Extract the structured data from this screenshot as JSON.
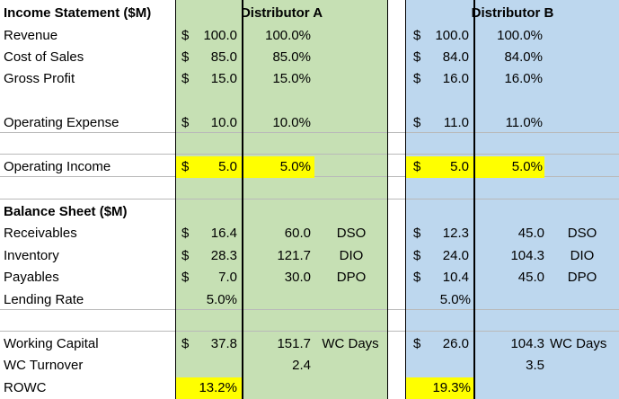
{
  "colors": {
    "green": "#c6e0b4",
    "blue": "#bdd7ee",
    "highlight": "#ffff00"
  },
  "headers": {
    "title": "Income Statement ($M)",
    "dist_a": "Distributor A",
    "dist_b": "Distributor B",
    "balance_title": "Balance Sheet ($M)"
  },
  "labels": {
    "revenue": "Revenue",
    "cost_of_sales": "Cost of Sales",
    "gross_profit": "Gross Profit",
    "operating_expense": "Operating Expense",
    "operating_income": "Operating Income",
    "receivables": "Receivables",
    "inventory": "Inventory",
    "payables": "Payables",
    "lending_rate": "Lending Rate",
    "working_capital": "Working Capital",
    "wc_turnover": "WC Turnover",
    "rowc": "ROWC"
  },
  "currency": "$",
  "dist_a": {
    "revenue": {
      "amount": "100.0",
      "pct": "100.0%"
    },
    "cost_of_sales": {
      "amount": "85.0",
      "pct": "85.0%"
    },
    "gross_profit": {
      "amount": "15.0",
      "pct": "15.0%"
    },
    "operating_expense": {
      "amount": "10.0",
      "pct": "10.0%"
    },
    "operating_income": {
      "amount": "5.0",
      "pct": "5.0%"
    },
    "receivables": {
      "amount": "16.4",
      "days": "60.0",
      "unit": "DSO"
    },
    "inventory": {
      "amount": "28.3",
      "days": "121.7",
      "unit": "DIO"
    },
    "payables": {
      "amount": "7.0",
      "days": "30.0",
      "unit": "DPO"
    },
    "lending_rate": "5.0%",
    "working_capital": {
      "amount": "37.8",
      "days": "151.7",
      "unit": "WC Days"
    },
    "wc_turnover": "2.4",
    "rowc": "13.2%"
  },
  "dist_b": {
    "revenue": {
      "amount": "100.0",
      "pct": "100.0%"
    },
    "cost_of_sales": {
      "amount": "84.0",
      "pct": "84.0%"
    },
    "gross_profit": {
      "amount": "16.0",
      "pct": "16.0%"
    },
    "operating_expense": {
      "amount": "11.0",
      "pct": "11.0%"
    },
    "operating_income": {
      "amount": "5.0",
      "pct": "5.0%"
    },
    "receivables": {
      "amount": "12.3",
      "days": "45.0",
      "unit": "DSO"
    },
    "inventory": {
      "amount": "24.0",
      "days": "104.3",
      "unit": "DIO"
    },
    "payables": {
      "amount": "10.4",
      "days": "45.0",
      "unit": "DPO"
    },
    "lending_rate": "5.0%",
    "working_capital": {
      "amount": "26.0",
      "days": "104.3",
      "unit": "WC Days"
    },
    "wc_turnover": "3.5",
    "rowc": "19.3%"
  }
}
